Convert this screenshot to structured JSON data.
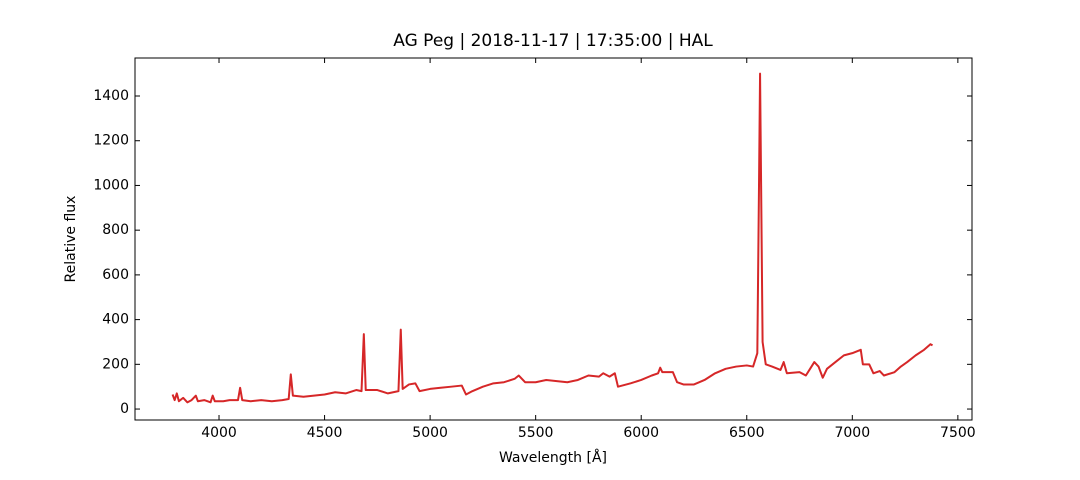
{
  "chart_data": {
    "type": "line",
    "title": "AG Peg | 2018-11-17 | 17:35:00 | HAL",
    "xlabel": "Wavelength [Å]",
    "ylabel": "Relative flux",
    "xlim": [
      3602,
      7567
    ],
    "ylim": [
      -49,
      1570
    ],
    "xticks": [
      4000,
      4500,
      5000,
      5500,
      6000,
      6500,
      7000,
      7500
    ],
    "yticks": [
      0,
      200,
      400,
      600,
      800,
      1000,
      1200,
      1400
    ],
    "x": [
      3780,
      3790,
      3800,
      3810,
      3830,
      3850,
      3870,
      3890,
      3900,
      3930,
      3960,
      3970,
      3980,
      4020,
      4050,
      4090,
      4100,
      4110,
      4150,
      4200,
      4250,
      4300,
      4330,
      4340,
      4350,
      4400,
      4450,
      4500,
      4550,
      4600,
      4650,
      4675,
      4686,
      4695,
      4750,
      4800,
      4850,
      4861,
      4870,
      4900,
      4930,
      4950,
      5000,
      5050,
      5100,
      5150,
      5170,
      5200,
      5250,
      5300,
      5350,
      5400,
      5420,
      5450,
      5500,
      5550,
      5600,
      5650,
      5700,
      5750,
      5800,
      5820,
      5850,
      5875,
      5890,
      5950,
      6000,
      6050,
      6080,
      6090,
      6100,
      6150,
      6170,
      6200,
      6250,
      6300,
      6350,
      6400,
      6450,
      6500,
      6530,
      6550,
      6558,
      6563,
      6568,
      6575,
      6590,
      6620,
      6660,
      6675,
      6690,
      6750,
      6780,
      6800,
      6820,
      6840,
      6860,
      6880,
      6920,
      6960,
      7000,
      7040,
      7050,
      7080,
      7100,
      7130,
      7150,
      7200,
      7230,
      7260,
      7300,
      7340,
      7370,
      7380
    ],
    "series": [
      {
        "color": "#d62728",
        "values": [
          65,
          40,
          70,
          35,
          50,
          30,
          40,
          60,
          35,
          40,
          30,
          60,
          35,
          35,
          40,
          40,
          95,
          40,
          35,
          40,
          35,
          40,
          45,
          155,
          60,
          55,
          60,
          65,
          75,
          70,
          85,
          80,
          335,
          85,
          85,
          70,
          80,
          355,
          90,
          110,
          115,
          80,
          90,
          95,
          100,
          105,
          65,
          80,
          100,
          115,
          120,
          135,
          150,
          120,
          120,
          130,
          125,
          120,
          130,
          150,
          145,
          160,
          145,
          160,
          100,
          115,
          130,
          150,
          160,
          185,
          165,
          165,
          120,
          110,
          110,
          130,
          160,
          180,
          190,
          195,
          190,
          250,
          1000,
          1500,
          1000,
          300,
          200,
          190,
          175,
          210,
          160,
          165,
          150,
          180,
          210,
          190,
          140,
          180,
          210,
          240,
          250,
          265,
          200,
          200,
          160,
          170,
          150,
          165,
          190,
          210,
          240,
          265,
          290,
          285
        ]
      }
    ]
  }
}
